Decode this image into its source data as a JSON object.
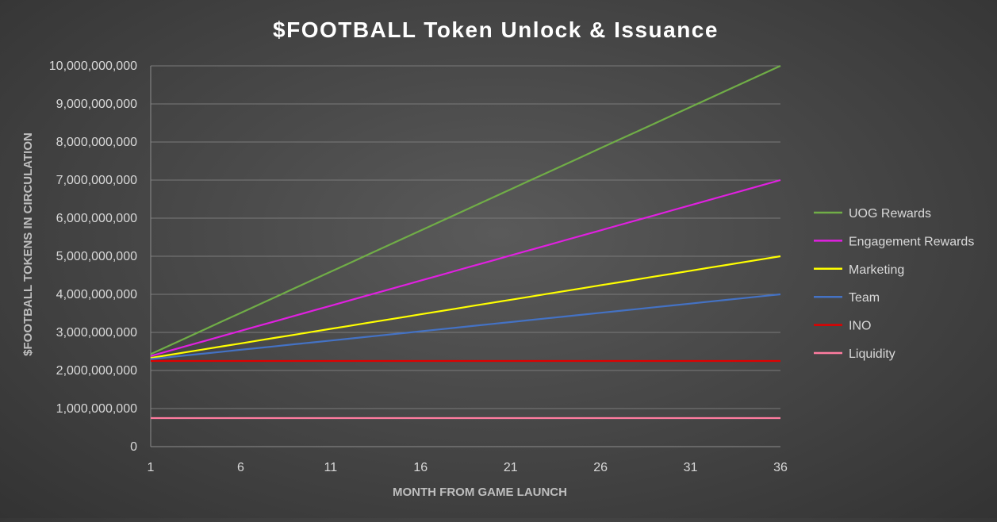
{
  "chart_data": {
    "type": "line",
    "title": "$FOOTBALL Token Unlock & Issuance",
    "xlabel": "MONTH FROM GAME LAUNCH",
    "ylabel": "$FOOTBALL TOKENS IN CIRCULATION",
    "xlim": [
      1,
      36
    ],
    "ylim": [
      0,
      10000000000
    ],
    "x_ticks": [
      1,
      6,
      11,
      16,
      21,
      26,
      31,
      36
    ],
    "y_ticks": [
      {
        "value": 0,
        "label": "0"
      },
      {
        "value": 1000000000,
        "label": "1,000,000,000"
      },
      {
        "value": 2000000000,
        "label": "2,000,000,000"
      },
      {
        "value": 3000000000,
        "label": "3,000,000,000"
      },
      {
        "value": 4000000000,
        "label": "4,000,000,000"
      },
      {
        "value": 5000000000,
        "label": "5,000,000,000"
      },
      {
        "value": 6000000000,
        "label": "6,000,000,000"
      },
      {
        "value": 7000000000,
        "label": "7,000,000,000"
      },
      {
        "value": 8000000000,
        "label": "8,000,000,000"
      },
      {
        "value": 9000000000,
        "label": "9,000,000,000"
      },
      {
        "value": 10000000000,
        "label": "10,000,000,000"
      }
    ],
    "grid": "horizontal",
    "legend_position": "right",
    "series": [
      {
        "name": "UOG Rewards",
        "color": "#70ad47",
        "start": 2430000000,
        "end": 10000000000
      },
      {
        "name": "Engagement Rewards",
        "color": "#e020e0",
        "start": 2380000000,
        "end": 7000000000
      },
      {
        "name": "Marketing",
        "color": "#ffff00",
        "start": 2330000000,
        "end": 5000000000
      },
      {
        "name": "Team",
        "color": "#4472c4",
        "start": 2300000000,
        "end": 4000000000
      },
      {
        "name": "INO",
        "color": "#e00000",
        "start": 2250000000,
        "end": 2250000000
      },
      {
        "name": "Liquidity",
        "color": "#ff7ca0",
        "start": 750000000,
        "end": 750000000
      }
    ]
  }
}
